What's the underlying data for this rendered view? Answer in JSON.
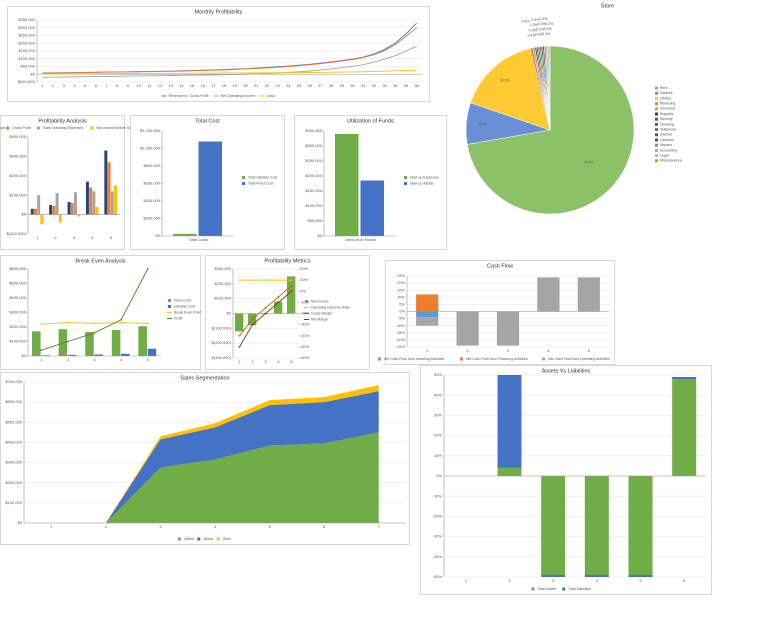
{
  "chart_data": [
    {
      "type": "line",
      "title": "Monthly Profitability",
      "categories": [
        1,
        2,
        3,
        4,
        5,
        6,
        7,
        8,
        9,
        10,
        11,
        12,
        13,
        14,
        15,
        16,
        17,
        18,
        19,
        20,
        21,
        22,
        23,
        24,
        25,
        26,
        27,
        28,
        29,
        30,
        31,
        32,
        33,
        34,
        35,
        36
      ],
      "series": [
        {
          "name": "Revenue",
          "color": "#4472c4",
          "values": [
            8000,
            9000,
            10000,
            11000,
            12000,
            13000,
            14000,
            15000,
            16000,
            17000,
            18000,
            19000,
            20000,
            22000,
            24000,
            26000,
            28000,
            30000,
            33000,
            36000,
            40000,
            44000,
            48000,
            53000,
            58000,
            64000,
            71000,
            79000,
            88000,
            98000,
            110000,
            130000,
            160000,
            200000,
            260000,
            330000
          ]
        },
        {
          "name": "Gross Profit",
          "color": "#ed7d31",
          "values": [
            7000,
            8000,
            9000,
            10000,
            11000,
            12000,
            13000,
            14000,
            15000,
            16000,
            17000,
            18000,
            19000,
            20000,
            22000,
            24000,
            26000,
            28000,
            31000,
            34000,
            37000,
            41000,
            45000,
            50000,
            55000,
            61000,
            68000,
            76000,
            85000,
            95000,
            108000,
            126000,
            152000,
            190000,
            245000,
            300000
          ]
        },
        {
          "name": "Net Operating Income",
          "color": "#a5a5a5",
          "values": [
            -20000,
            -19000,
            -18000,
            -17000,
            -16000,
            -15000,
            -14000,
            -13000,
            -12000,
            -11000,
            -10000,
            -9000,
            -8000,
            -7000,
            -6000,
            -5000,
            -4000,
            -3000,
            -2000,
            0,
            2000,
            5000,
            8000,
            12000,
            16000,
            21000,
            27000,
            34000,
            42000,
            51000,
            62000,
            78000,
            98000,
            120000,
            150000,
            180000
          ]
        },
        {
          "name": "Cash",
          "color": "#ffc000",
          "values": [
            2000,
            2000,
            3000,
            3000,
            3000,
            4000,
            4000,
            4000,
            5000,
            5000,
            5000,
            6000,
            6000,
            6000,
            7000,
            7000,
            7000,
            8000,
            8000,
            8000,
            9000,
            9000,
            10000,
            10000,
            11000,
            11000,
            12000,
            13000,
            14000,
            15000,
            16000,
            18000,
            20000,
            22000,
            24000,
            26000
          ]
        }
      ],
      "ylim": [
        -50000,
        350000
      ],
      "yticks": [
        {
          "value": -50000,
          "label": "$(50,000)"
        },
        {
          "value": 0,
          "label": "$0"
        },
        {
          "value": 50000,
          "label": "$50,000"
        },
        {
          "value": 100000,
          "label": "$100,000"
        },
        {
          "value": 150000,
          "label": "$150,000"
        },
        {
          "value": 200000,
          "label": "$200,000"
        },
        {
          "value": 250000,
          "label": "$250,000"
        },
        {
          "value": 300000,
          "label": "$300,000"
        },
        {
          "value": 350000,
          "label": "$350,000"
        }
      ],
      "grid": true,
      "legend": "bottom"
    },
    {
      "type": "pie",
      "title": "Store",
      "categories": [
        "Rent",
        "Salaries",
        "Utilities",
        "Marketing",
        "Insurance",
        "Supplies",
        "Security",
        "Cleaning",
        "Telephone",
        "Internet",
        "Licenses",
        "Repairs",
        "Accounting",
        "Legal",
        "Miscellaneous"
      ],
      "values": [
        72.4,
        8,
        16,
        0.5,
        0.4,
        0.3,
        0.3,
        0.3,
        0.3,
        0.3,
        0.3,
        0.3,
        0.3,
        0.3,
        0.2
      ],
      "value_labels": [
        "72.4%",
        "8.0%",
        "16.0%",
        "0.5%",
        "0.4%",
        "0.3%",
        "0.3%",
        "0.3%",
        "0.3%",
        "0.3%",
        "0.3%",
        "0.3%",
        "0.3%",
        "0.3%",
        "0.2%"
      ],
      "colors": [
        "#8cc168",
        "#6a8fd6",
        "#ffc931",
        "#ed7d31",
        "#a5a5a5",
        "#264478",
        "#9e480e",
        "#636363",
        "#997300",
        "#255e91",
        "#43682b",
        "#698ed0",
        "#f1975a",
        "#b7b7b7",
        "#cca300"
      ],
      "legend": "right"
    },
    {
      "type": "bar",
      "title": "Profitability Analysis",
      "categories": [
        1,
        2,
        3,
        4,
        5
      ],
      "series": [
        {
          "name": "Revenue",
          "color": "#264478",
          "values": [
            30000,
            50000,
            65000,
            170000,
            330000
          ]
        },
        {
          "name": "Gross Profit",
          "color": "#ed7d31",
          "values": [
            30000,
            45000,
            60000,
            140000,
            270000
          ]
        },
        {
          "name": "Total Operating Expenses",
          "color": "#a5a5a5",
          "values": [
            100000,
            110000,
            115000,
            120000,
            120000
          ]
        },
        {
          "name": "Net Income Before Taxes",
          "color": "#ffc000",
          "values": [
            -50000,
            -40000,
            -10000,
            40000,
            150000
          ]
        }
      ],
      "ylim": [
        -100000,
        400000
      ],
      "yticks": [
        {
          "value": -100000,
          "label": "$(100,000)"
        },
        {
          "value": 0,
          "label": "$0"
        },
        {
          "value": 100000,
          "label": "$100,000"
        },
        {
          "value": 200000,
          "label": "$200,000"
        },
        {
          "value": 300000,
          "label": "$300,000"
        },
        {
          "value": 400000,
          "label": "$400,000"
        }
      ],
      "grid": false,
      "legend": "top"
    },
    {
      "type": "bar",
      "title": "Total Cost",
      "categories": [
        "Total Costs"
      ],
      "series": [
        {
          "name": "Total Variable Cost",
          "color": "#70ad47",
          "values": [
            25000
          ]
        },
        {
          "name": "Total Fixed Cost",
          "color": "#4472c4",
          "values": [
            1080000
          ]
        }
      ],
      "ylim": [
        0,
        1200000
      ],
      "yticks": [
        {
          "value": 0,
          "label": "$0"
        },
        {
          "value": 200000,
          "label": "$200,000"
        },
        {
          "value": 400000,
          "label": "$400,000"
        },
        {
          "value": 600000,
          "label": "$600,000"
        },
        {
          "value": 800000,
          "label": "$800,000"
        },
        {
          "value": 1000000,
          "label": "$1,000,000"
        },
        {
          "value": 1200000,
          "label": "$1,200,000"
        }
      ],
      "grid": false,
      "legend": "right"
    },
    {
      "type": "bar",
      "title": "Utilization of Funds",
      "categories": [
        "Amount of Funds"
      ],
      "series": [
        {
          "name": "Start-up Expenses",
          "color": "#70ad47",
          "values": [
            340000
          ]
        },
        {
          "name": "Start-up Assets",
          "color": "#4472c4",
          "values": [
            185000
          ]
        }
      ],
      "ylim": [
        0,
        350000
      ],
      "yticks": [
        {
          "value": 0,
          "label": "$0"
        },
        {
          "value": 50000,
          "label": "$50,000"
        },
        {
          "value": 100000,
          "label": "$100,000"
        },
        {
          "value": 150000,
          "label": "$150,000"
        },
        {
          "value": 200000,
          "label": "$200,000"
        },
        {
          "value": 250000,
          "label": "$250,000"
        },
        {
          "value": 300000,
          "label": "$300,000"
        },
        {
          "value": 350000,
          "label": "$350,000"
        }
      ],
      "grid": false,
      "legend": "right"
    },
    {
      "type": "combo",
      "title": "Break Even Analysis",
      "categories": [
        1,
        2,
        3,
        4,
        5
      ],
      "series": [
        {
          "name": "Fixed Cost",
          "kind": "bar",
          "color": "#70ad47",
          "values": [
            170000,
            185000,
            165000,
            180000,
            205000
          ]
        },
        {
          "name": "Variable Cost",
          "kind": "bar",
          "color": "#4472c4",
          "values": [
            5000,
            8000,
            10000,
            15000,
            50000
          ]
        },
        {
          "name": "Break Even Point",
          "kind": "line",
          "color": "#ffc000",
          "values": [
            220000,
            230000,
            225000,
            230000,
            225000
          ]
        },
        {
          "name": "Profit",
          "kind": "line",
          "color": "#548235",
          "values": [
            40000,
            100000,
            160000,
            250000,
            600000
          ]
        }
      ],
      "ylim": [
        0,
        600000
      ],
      "yticks": [
        {
          "value": 0,
          "label": "$0"
        },
        {
          "value": 100000,
          "label": "$100,000"
        },
        {
          "value": 200000,
          "label": "$200,000"
        },
        {
          "value": 300000,
          "label": "$300,000"
        },
        {
          "value": 400000,
          "label": "$400,000"
        },
        {
          "value": 500000,
          "label": "$500,000"
        },
        {
          "value": 600000,
          "label": "$600,000"
        }
      ],
      "grid": false,
      "legend": "right"
    },
    {
      "type": "combo",
      "title": "Profitability Metrics",
      "categories": [
        1,
        2,
        3,
        4,
        5
      ],
      "series": [
        {
          "name": "Net Income",
          "kind": "bar",
          "color": "#70ad47",
          "values": [
            -120000,
            -80000,
            -5000,
            80000,
            250000
          ]
        },
        {
          "name": "Operating Expense Ratio",
          "kind": "line",
          "axis": "y2",
          "color": "#ffc000",
          "values": [
            10,
            10,
            10,
            10,
            10
          ]
        },
        {
          "name": "Gross Margin",
          "kind": "line",
          "axis": "y2",
          "color": "#c55a11",
          "values": [
            -40,
            -25,
            -15,
            -5,
            5
          ]
        },
        {
          "name": "Net Margin",
          "kind": "line",
          "axis": "y2",
          "color": "#843c0c",
          "values": [
            -50,
            -30,
            -20,
            -10,
            0
          ]
        }
      ],
      "ylim": [
        -300000,
        300000
      ],
      "yticks": [
        {
          "value": -300000,
          "label": "$(300,000)"
        },
        {
          "value": -200000,
          "label": "$(200,000)"
        },
        {
          "value": -100000,
          "label": "$(100,000)"
        },
        {
          "value": 0,
          "label": "$0"
        },
        {
          "value": 100000,
          "label": "$100,000"
        },
        {
          "value": 200000,
          "label": "$200,000"
        },
        {
          "value": 300000,
          "label": "$300,000"
        }
      ],
      "y2lim": [
        -60,
        20
      ],
      "y2ticks": [
        {
          "value": -60,
          "label": "-60%"
        },
        {
          "value": -50,
          "label": "-50%"
        },
        {
          "value": -40,
          "label": "-40%"
        },
        {
          "value": -30,
          "label": "-30%"
        },
        {
          "value": -20,
          "label": "-20%"
        },
        {
          "value": -10,
          "label": "-10%"
        },
        {
          "value": 0,
          "label": "0%"
        },
        {
          "value": 10,
          "label": "10%"
        },
        {
          "value": 20,
          "label": "20%"
        }
      ],
      "grid": true,
      "legend": "right"
    },
    {
      "type": "bar",
      "stacked": true,
      "title": "Cash Flow",
      "categories": [
        1,
        2,
        3,
        4,
        5
      ],
      "series": [
        {
          "name": "Net Cash Flow from Investing Activities",
          "color": "#5b9bd5",
          "values": [
            -4,
            0,
            0,
            0,
            0
          ]
        },
        {
          "name": "Net Cash Flow from Financing Activities",
          "color": "#ed7d31",
          "values": [
            12,
            0,
            0,
            0,
            0
          ]
        },
        {
          "name": "Net Cash Flow from Operating Activities",
          "color": "#a5a5a5",
          "values": [
            -6,
            -24,
            -24,
            24,
            24
          ]
        }
      ],
      "ylim": [
        -25,
        25
      ],
      "yticks": [
        {
          "value": -25,
          "label": "-25%"
        },
        {
          "value": -20,
          "label": "-20%"
        },
        {
          "value": -15,
          "label": "-15%"
        },
        {
          "value": -10,
          "label": "-10%"
        },
        {
          "value": -5,
          "label": "-5%"
        },
        {
          "value": 0,
          "label": "0%"
        },
        {
          "value": 5,
          "label": "5%"
        },
        {
          "value": 10,
          "label": "10%"
        },
        {
          "value": 15,
          "label": "15%"
        },
        {
          "value": 20,
          "label": "20%"
        },
        {
          "value": 25,
          "label": "25%"
        }
      ],
      "grid": true,
      "legend": "bottom"
    },
    {
      "type": "area",
      "title": "Sales Segmentation",
      "categories": [
        1,
        2,
        3,
        4,
        5,
        6,
        7
      ],
      "series": [
        {
          "name": "Online",
          "color": "#70ad47",
          "values": [
            0,
            0,
            275000,
            315000,
            385000,
            395000,
            450000
          ]
        },
        {
          "name": "Stores",
          "color": "#4472c4",
          "values": [
            0,
            0,
            140000,
            160000,
            200000,
            205000,
            205000
          ]
        },
        {
          "name": "Other",
          "color": "#ffc000",
          "values": [
            0,
            0,
            15000,
            20000,
            25000,
            25000,
            30000
          ]
        }
      ],
      "ylim": [
        0,
        700000
      ],
      "yticks": [
        {
          "value": 0,
          "label": "$0"
        },
        {
          "value": 100000,
          "label": "$100,000"
        },
        {
          "value": 200000,
          "label": "$200,000"
        },
        {
          "value": 300000,
          "label": "$300,000"
        },
        {
          "value": 400000,
          "label": "$400,000"
        },
        {
          "value": 500000,
          "label": "$500,000"
        },
        {
          "value": 600000,
          "label": "$600,000"
        },
        {
          "value": 700000,
          "label": "$700,000"
        }
      ],
      "grid": true,
      "legend": "bottom"
    },
    {
      "type": "bar",
      "stacked": true,
      "title": "Assets Vs Liabilities",
      "categories": [
        1,
        2,
        3,
        4,
        5,
        6
      ],
      "series": [
        {
          "name": "Total Assets",
          "color": "#70ad47",
          "values": [
            0,
            4,
            -49,
            -49,
            -49,
            48
          ]
        },
        {
          "name": "Total Liabilities",
          "color": "#4472c4",
          "values": [
            0,
            46,
            -1,
            -1,
            -1,
            1
          ]
        }
      ],
      "ylim": [
        -50,
        50
      ],
      "yticks": [
        {
          "value": -50,
          "label": "-50%"
        },
        {
          "value": -40,
          "label": "-40%"
        },
        {
          "value": -30,
          "label": "-30%"
        },
        {
          "value": -20,
          "label": "-20%"
        },
        {
          "value": -10,
          "label": "-10%"
        },
        {
          "value": 0,
          "label": "0%"
        },
        {
          "value": 10,
          "label": "10%"
        },
        {
          "value": 20,
          "label": "20%"
        },
        {
          "value": 30,
          "label": "30%"
        },
        {
          "value": 40,
          "label": "40%"
        },
        {
          "value": 50,
          "label": "50%"
        }
      ],
      "grid": true,
      "legend": "bottom"
    }
  ]
}
